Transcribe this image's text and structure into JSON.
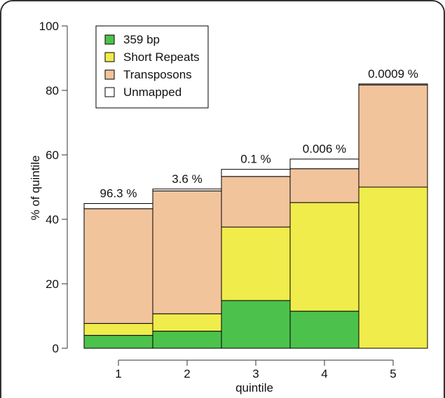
{
  "chart_data": {
    "type": "bar",
    "stacked": true,
    "title": "",
    "xlabel": "quintile",
    "ylabel": "% of quintile",
    "categories": [
      "1",
      "2",
      "3",
      "4",
      "5"
    ],
    "ylim": [
      0,
      100
    ],
    "yticks": [
      0,
      20,
      40,
      60,
      80,
      100
    ],
    "grid": false,
    "legend_position": "top-left",
    "series": [
      {
        "name": "359 bp",
        "color": "#4cc24c",
        "values": [
          4.0,
          5.3,
          14.8,
          11.5,
          0.0
        ]
      },
      {
        "name": "Short Repeats",
        "color": "#f0ec4c",
        "values": [
          3.7,
          5.4,
          22.8,
          33.7,
          50.0
        ]
      },
      {
        "name": "Transposons",
        "color": "#f2c49c",
        "values": [
          35.6,
          38.1,
          15.7,
          10.5,
          31.7
        ]
      },
      {
        "name": "Unmapped",
        "color": "#ffffff",
        "values": [
          1.6,
          0.6,
          2.2,
          3.0,
          0.3
        ]
      }
    ],
    "bar_labels": [
      "96.3 %",
      "3.6 %",
      "0.1 %",
      "0.006 %",
      "0.0009 %"
    ]
  }
}
